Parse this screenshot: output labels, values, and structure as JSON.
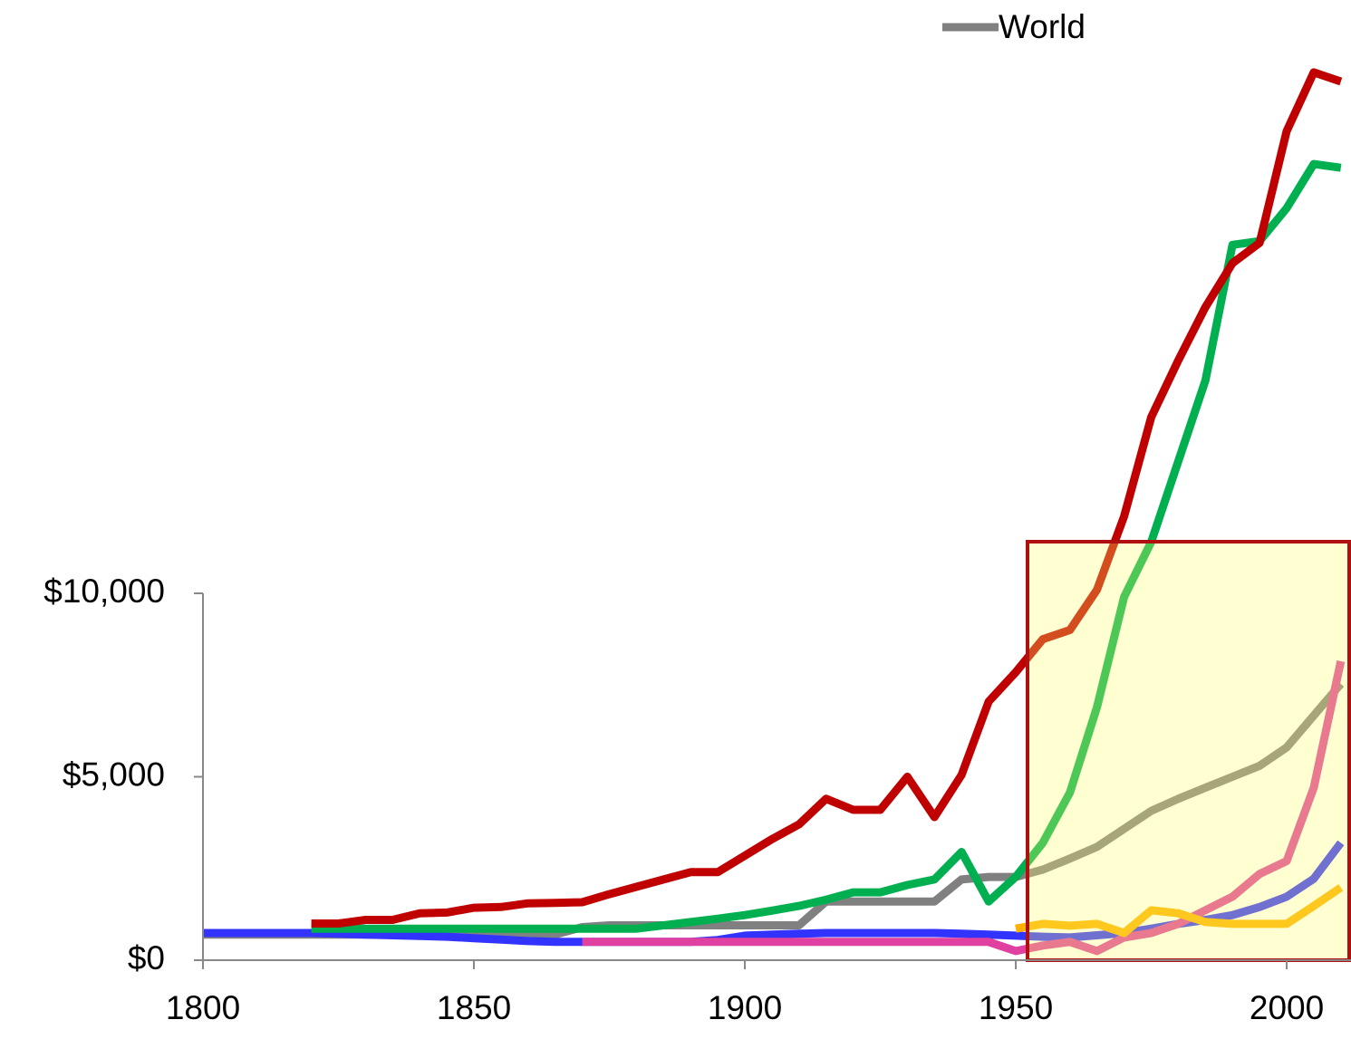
{
  "chart_data": {
    "type": "line",
    "x": [
      1800,
      1805,
      1810,
      1815,
      1820,
      1825,
      1830,
      1835,
      1840,
      1845,
      1850,
      1855,
      1860,
      1865,
      1870,
      1875,
      1880,
      1885,
      1890,
      1895,
      1900,
      1905,
      1910,
      1915,
      1920,
      1925,
      1930,
      1935,
      1940,
      1945,
      1950,
      1955,
      1960,
      1965,
      1970,
      1975,
      1980,
      1985,
      1990,
      1995,
      2000,
      2005,
      2010
    ],
    "series": [
      {
        "name": "World",
        "color": "#808080",
        "values": [
          700,
          700,
          700,
          700,
          700,
          700,
          700,
          700,
          700,
          700,
          700,
          700,
          700,
          700,
          900,
          950,
          950,
          950,
          950,
          950,
          950,
          950,
          950,
          1600,
          1600,
          1600,
          1600,
          1600,
          2200,
          2270,
          2270,
          2470,
          2770,
          3090,
          3580,
          4070,
          4400,
          4700,
          5000,
          5300,
          5800,
          6670,
          7530
        ]
      },
      {
        "color": "#3333ff",
        "values": [
          740,
          740,
          740,
          740,
          740,
          720,
          700,
          680,
          660,
          640,
          600,
          560,
          520,
          500,
          500,
          500,
          500,
          500,
          500,
          550,
          670,
          700,
          720,
          740,
          740,
          740,
          740,
          740,
          720,
          700,
          670,
          640,
          620,
          680,
          740,
          860,
          990,
          1100,
          1230,
          1450,
          1730,
          2220,
          3200
        ]
      },
      {
        "color": "#e040a0",
        "values": [
          null,
          null,
          null,
          null,
          null,
          null,
          null,
          null,
          null,
          null,
          null,
          null,
          null,
          null,
          500,
          500,
          500,
          500,
          500,
          500,
          500,
          500,
          500,
          500,
          500,
          500,
          500,
          500,
          500,
          500,
          250,
          400,
          500,
          250,
          620,
          740,
          990,
          1360,
          1730,
          2350,
          2700,
          4700,
          8150
        ]
      },
      {
        "color": "#ffb000",
        "values": [
          null,
          null,
          null,
          null,
          null,
          null,
          null,
          null,
          null,
          null,
          null,
          null,
          null,
          null,
          null,
          null,
          null,
          null,
          null,
          null,
          null,
          null,
          null,
          null,
          null,
          null,
          null,
          null,
          null,
          null,
          860,
          990,
          940,
          990,
          740,
          1360,
          1280,
          1040,
          990,
          990,
          990,
          1480,
          1980
        ]
      },
      {
        "color": "#00b050",
        "values": [
          null,
          null,
          null,
          null,
          860,
          860,
          860,
          860,
          860,
          860,
          860,
          860,
          860,
          860,
          860,
          860,
          860,
          950,
          1040,
          1130,
          1230,
          1350,
          1480,
          1650,
          1850,
          1850,
          2050,
          2200,
          2950,
          1600,
          2270,
          3200,
          4570,
          6900,
          9900,
          11400,
          13600,
          15800,
          19500,
          19600,
          20500,
          21700,
          21600
        ]
      },
      {
        "color": "#c00000",
        "values": [
          null,
          null,
          null,
          null,
          1000,
          1000,
          1100,
          1100,
          1280,
          1300,
          1430,
          1450,
          1550,
          1560,
          1580,
          1800,
          2000,
          2200,
          2400,
          2400,
          2850,
          3300,
          3700,
          4400,
          4100,
          4100,
          5000,
          3900,
          5050,
          7050,
          7850,
          8750,
          9000,
          10100,
          12100,
          14800,
          16350,
          17800,
          19000,
          19550,
          22600,
          24200,
          23950
        ]
      }
    ],
    "xlim": [
      1800,
      2012
    ],
    "xticks": [
      1800,
      1850,
      1900,
      1950,
      2000
    ],
    "ylim": [
      0,
      25000
    ],
    "yticks": [
      {
        "value": 0,
        "label": "$0"
      },
      {
        "value": 5000,
        "label": "$5,000"
      },
      {
        "value": 10000,
        "label": "$10,000"
      }
    ],
    "legend": "top",
    "grid": false
  }
}
